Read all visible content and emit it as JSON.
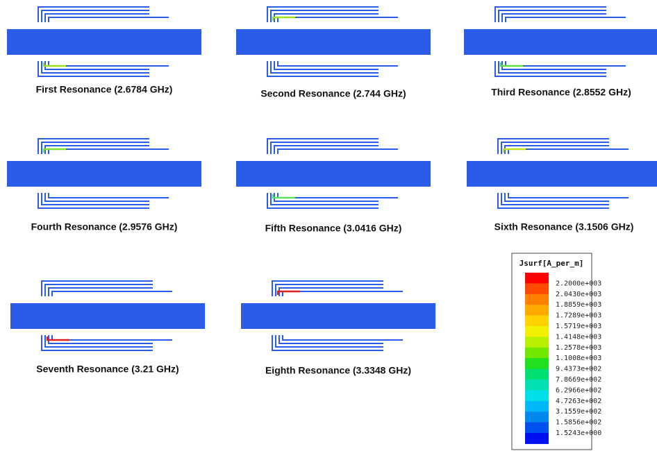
{
  "panels": [
    {
      "caption": "First Resonance (2.6784 GHz)"
    },
    {
      "caption": "Second Resonance (2.744 GHz)"
    },
    {
      "caption": "Third Resonance (2.8552 GHz)"
    },
    {
      "caption": "Fourth Resonance (2.9576 GHz)"
    },
    {
      "caption": "Fifth Resonance (3.0416 GHz)"
    },
    {
      "caption": "Sixth Resonance (3.1506 GHz)"
    },
    {
      "caption": "Seventh Resonance (3.21 GHz)"
    },
    {
      "caption": "Eighth Resonance (3.3348 GHz)"
    }
  ],
  "legend": {
    "title": "Jsurf[A_per_m]",
    "labels": [
      "2.2000e+003",
      "2.0430e+003",
      "1.8859e+003",
      "1.7289e+003",
      "1.5719e+003",
      "1.4148e+003",
      "1.2578e+003",
      "1.1008e+003",
      "9.4373e+002",
      "7.8669e+002",
      "6.2966e+002",
      "4.7263e+002",
      "3.1559e+002",
      "1.5856e+002",
      "1.5243e+000"
    ]
  }
}
